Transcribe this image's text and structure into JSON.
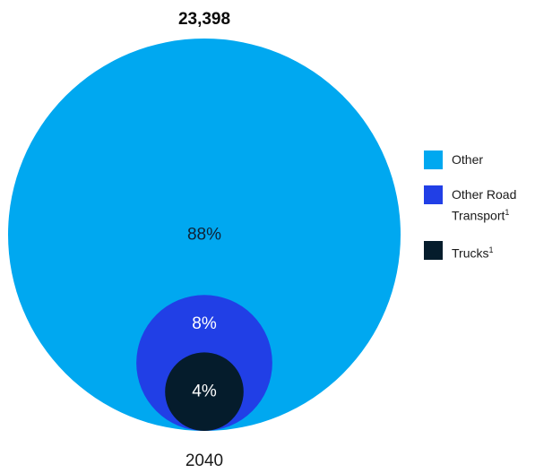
{
  "chart_data": {
    "type": "nested-bubble",
    "title": "23,398",
    "category_label": "2040",
    "series": [
      {
        "name": "Other",
        "value_pct": 88,
        "label": "88%",
        "color": "#00a8f0",
        "label_color": "#0f2236"
      },
      {
        "name": "Other Road Transport",
        "footnote": "1",
        "value_pct": 8,
        "label": "8%",
        "color": "#213fe6",
        "label_color": "#ffffff"
      },
      {
        "name": "Trucks",
        "footnote": "1",
        "value_pct": 4,
        "label": "4%",
        "color": "#051c2c",
        "label_color": "#ffffff"
      }
    ],
    "legend_position": "right"
  }
}
